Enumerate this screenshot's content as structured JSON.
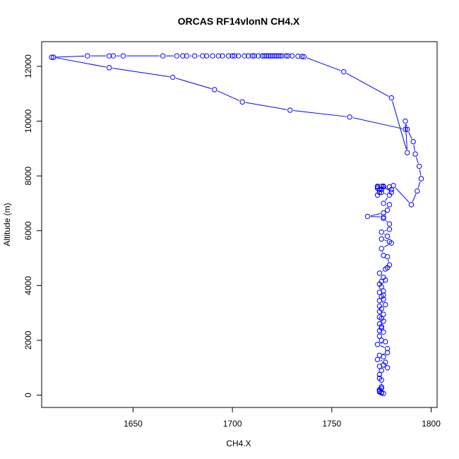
{
  "chart_data": {
    "type": "line",
    "title": "ORCAS RF14vlonN CH4.X",
    "xlabel": "CH4.X",
    "ylabel": "Altitude (m)",
    "xlim": [
      1604,
      1803
    ],
    "ylim": [
      -450,
      12900
    ],
    "xticks": [
      1650,
      1700,
      1750,
      1800
    ],
    "yticks": [
      0,
      2000,
      4000,
      6000,
      8000,
      10000,
      12000
    ],
    "marker": "open-circle",
    "series_color": "#0000ff",
    "series": [
      {
        "x": [
          1776,
          1775,
          1775,
          1774,
          1774,
          1774,
          1775,
          1775,
          1775,
          1774,
          1774,
          1775,
          1774,
          1778,
          1776,
          1777,
          1773,
          1776,
          1774,
          1778,
          1778,
          1773,
          1777,
          1775,
          1774,
          1776,
          1774,
          1775,
          1775,
          1774,
          1776,
          1775,
          1774,
          1776,
          1774,
          1775,
          1774,
          1777,
          1774,
          1776,
          1775,
          1776,
          1774,
          1776,
          1775,
          1774,
          1775,
          1777,
          1776,
          1774,
          1777,
          1778,
          1779,
          1778,
          1776,
          1775,
          1780,
          1779,
          1775,
          1778,
          1775,
          1779,
          1779,
          1776,
          1776,
          1768,
          1776,
          1778,
          1779,
          1776,
          1779,
          1775,
          1775,
          1779,
          1773,
          1776,
          1775,
          1773,
          1776,
          1773,
          1773,
          1774,
          1774,
          1776,
          1780,
          1780,
          1781,
          1790,
          1793,
          1795,
          1794,
          1792,
          1791,
          1788,
          1787,
          1788,
          1780,
          1756,
          1736,
          1735,
          1733,
          1730,
          1728,
          1727,
          1725,
          1724,
          1723,
          1722,
          1721,
          1720,
          1719,
          1718,
          1717,
          1716,
          1715,
          1713,
          1711,
          1710,
          1708,
          1706,
          1703,
          1701,
          1700,
          1698,
          1695,
          1693,
          1690,
          1687,
          1685,
          1681,
          1677,
          1675,
          1672,
          1665,
          1645,
          1640,
          1638,
          1627,
          1609,
          1610,
          1638,
          1670,
          1691,
          1705,
          1729,
          1759,
          1787
        ],
        "y": [
          60,
          100,
          80,
          120,
          150,
          200,
          300,
          250,
          550,
          620,
          750,
          900,
          1050,
          1000,
          1100,
          1200,
          1300,
          1400,
          1450,
          1550,
          1700,
          1850,
          1950,
          2000,
          2150,
          2300,
          2350,
          2450,
          2500,
          2600,
          2700,
          2800,
          2850,
          2950,
          3050,
          3150,
          3250,
          3300,
          3450,
          3500,
          3600,
          3650,
          3750,
          3800,
          3950,
          4050,
          4150,
          4200,
          4300,
          4450,
          4600,
          4650,
          4750,
          5050,
          5100,
          5350,
          5550,
          5600,
          5700,
          5800,
          5950,
          6050,
          6250,
          6450,
          6500,
          6520,
          6650,
          6750,
          6950,
          7000,
          7300,
          7400,
          7500,
          7600,
          7600,
          7600,
          7620,
          7620,
          7620,
          7550,
          7300,
          7400,
          7500,
          7620,
          7400,
          7500,
          7650,
          6950,
          7450,
          7900,
          8350,
          8800,
          9250,
          9700,
          10000,
          8850,
          10850,
          11800,
          12350,
          12360,
          12370,
          12380,
          12380,
          12380,
          12380,
          12380,
          12380,
          12380,
          12380,
          12380,
          12380,
          12380,
          12380,
          12380,
          12380,
          12380,
          12380,
          12380,
          12380,
          12380,
          12380,
          12380,
          12380,
          12380,
          12380,
          12380,
          12380,
          12380,
          12380,
          12380,
          12380,
          12380,
          12380,
          12380,
          12380,
          12380,
          12380,
          12380,
          12330,
          12330,
          11950,
          11600,
          11150,
          10700,
          10400,
          10150,
          9700
        ]
      }
    ]
  }
}
